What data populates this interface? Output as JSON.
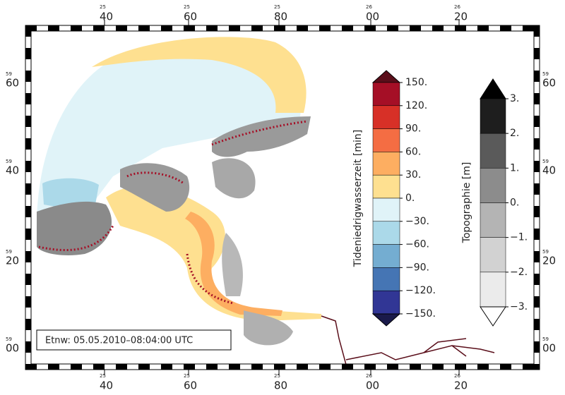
{
  "lon_labels": [
    {
      "deg": "25",
      "min": "40"
    },
    {
      "deg": "25",
      "min": "60"
    },
    {
      "deg": "25",
      "min": "80"
    },
    {
      "deg": "26",
      "min": "00"
    },
    {
      "deg": "26",
      "min": "20"
    }
  ],
  "lat_labels": [
    {
      "deg": "59",
      "min": "60"
    },
    {
      "deg": "59",
      "min": "40"
    },
    {
      "deg": "59",
      "min": "20"
    },
    {
      "deg": "59",
      "min": "00"
    }
  ],
  "timestamp": "Etnw: 05.05.2010–08:04:00 UTC",
  "colorbars": [
    {
      "title": "Tideniedrigwasserzeit [min]",
      "levels": [
        {
          "value": 150,
          "label": "150."
        },
        {
          "value": 120,
          "label": "120."
        },
        {
          "value": 90,
          "label": "90."
        },
        {
          "value": 60,
          "label": "60."
        },
        {
          "value": 30,
          "label": "30."
        },
        {
          "value": 0,
          "label": "0."
        },
        {
          "value": -30,
          "label": "−30."
        },
        {
          "value": -60,
          "label": "−60."
        },
        {
          "value": -90,
          "label": "−90."
        },
        {
          "value": -120,
          "label": "−120."
        },
        {
          "value": -150,
          "label": "−150."
        }
      ],
      "colors": [
        "#5a0e1a",
        "#a50f26",
        "#d73027",
        "#f46d43",
        "#fdae61",
        "#fee090",
        "#e0f3f8",
        "#abd9e9",
        "#74add1",
        "#4575b4",
        "#313695",
        "#1a1a4a"
      ]
    },
    {
      "title": "Topographie [m]",
      "levels": [
        {
          "value": 3,
          "label": "3."
        },
        {
          "value": 2,
          "label": "2."
        },
        {
          "value": 1,
          "label": "1."
        },
        {
          "value": 0,
          "label": "0."
        },
        {
          "value": -1,
          "label": "−1."
        },
        {
          "value": -2,
          "label": "−2."
        },
        {
          "value": -3,
          "label": "−3."
        }
      ],
      "colors": [
        "#000000",
        "#1e1e1e",
        "#5a5a5a",
        "#8c8c8c",
        "#b4b4b4",
        "#d2d2d2",
        "#ebebeb",
        "#ffffff"
      ]
    }
  ]
}
